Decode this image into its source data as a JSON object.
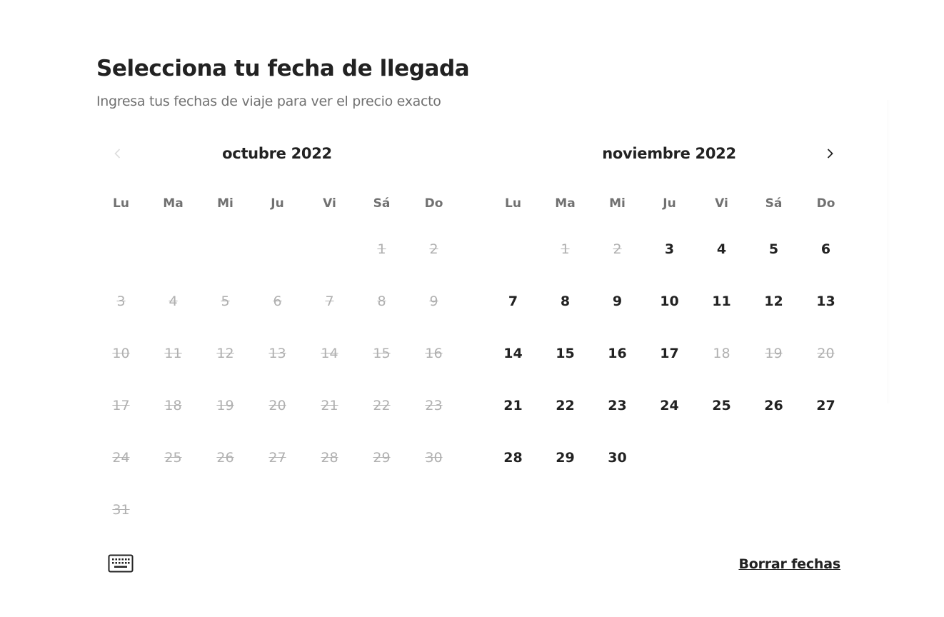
{
  "header": {
    "title": "Selecciona tu fecha de llegada",
    "subtitle": "Ingresa tus fechas de viaje para ver el precio exacto"
  },
  "icons": {
    "prev": "chevron-left-icon",
    "next": "chevron-right-icon",
    "keyboard": "keyboard-icon"
  },
  "weekdays": [
    "Lu",
    "Ma",
    "Mi",
    "Ju",
    "Vi",
    "Sá",
    "Do"
  ],
  "months": [
    {
      "title": "octubre 2022",
      "offset": 5,
      "days": [
        {
          "label": "1",
          "state": "blocked"
        },
        {
          "label": "2",
          "state": "blocked"
        },
        {
          "label": "3",
          "state": "blocked"
        },
        {
          "label": "4",
          "state": "blocked"
        },
        {
          "label": "5",
          "state": "blocked"
        },
        {
          "label": "6",
          "state": "blocked"
        },
        {
          "label": "7",
          "state": "blocked"
        },
        {
          "label": "8",
          "state": "blocked"
        },
        {
          "label": "9",
          "state": "blocked"
        },
        {
          "label": "10",
          "state": "blocked"
        },
        {
          "label": "11",
          "state": "blocked"
        },
        {
          "label": "12",
          "state": "blocked"
        },
        {
          "label": "13",
          "state": "blocked"
        },
        {
          "label": "14",
          "state": "blocked"
        },
        {
          "label": "15",
          "state": "blocked"
        },
        {
          "label": "16",
          "state": "blocked"
        },
        {
          "label": "17",
          "state": "blocked"
        },
        {
          "label": "18",
          "state": "blocked"
        },
        {
          "label": "19",
          "state": "blocked"
        },
        {
          "label": "20",
          "state": "blocked"
        },
        {
          "label": "21",
          "state": "blocked"
        },
        {
          "label": "22",
          "state": "blocked"
        },
        {
          "label": "23",
          "state": "blocked"
        },
        {
          "label": "24",
          "state": "blocked"
        },
        {
          "label": "25",
          "state": "blocked"
        },
        {
          "label": "26",
          "state": "blocked"
        },
        {
          "label": "27",
          "state": "blocked"
        },
        {
          "label": "28",
          "state": "blocked"
        },
        {
          "label": "29",
          "state": "blocked"
        },
        {
          "label": "30",
          "state": "blocked"
        },
        {
          "label": "31",
          "state": "blocked"
        }
      ]
    },
    {
      "title": "noviembre 2022",
      "offset": 1,
      "days": [
        {
          "label": "1",
          "state": "blocked"
        },
        {
          "label": "2",
          "state": "blocked"
        },
        {
          "label": "3",
          "state": "available"
        },
        {
          "label": "4",
          "state": "available"
        },
        {
          "label": "5",
          "state": "available"
        },
        {
          "label": "6",
          "state": "available"
        },
        {
          "label": "7",
          "state": "available"
        },
        {
          "label": "8",
          "state": "available"
        },
        {
          "label": "9",
          "state": "available"
        },
        {
          "label": "10",
          "state": "available"
        },
        {
          "label": "11",
          "state": "available"
        },
        {
          "label": "12",
          "state": "available"
        },
        {
          "label": "13",
          "state": "available"
        },
        {
          "label": "14",
          "state": "available"
        },
        {
          "label": "15",
          "state": "available"
        },
        {
          "label": "16",
          "state": "available"
        },
        {
          "label": "17",
          "state": "available"
        },
        {
          "label": "18",
          "state": "unavailable"
        },
        {
          "label": "19",
          "state": "blocked"
        },
        {
          "label": "20",
          "state": "blocked"
        },
        {
          "label": "21",
          "state": "available"
        },
        {
          "label": "22",
          "state": "available"
        },
        {
          "label": "23",
          "state": "available"
        },
        {
          "label": "24",
          "state": "available"
        },
        {
          "label": "25",
          "state": "available"
        },
        {
          "label": "26",
          "state": "available"
        },
        {
          "label": "27",
          "state": "available"
        },
        {
          "label": "28",
          "state": "available"
        },
        {
          "label": "29",
          "state": "available"
        },
        {
          "label": "30",
          "state": "available"
        }
      ]
    }
  ],
  "footer": {
    "clear_label": "Borrar fechas"
  },
  "colors": {
    "text": "#222222",
    "muted": "#717171",
    "disabled": "#b0b0b0"
  }
}
